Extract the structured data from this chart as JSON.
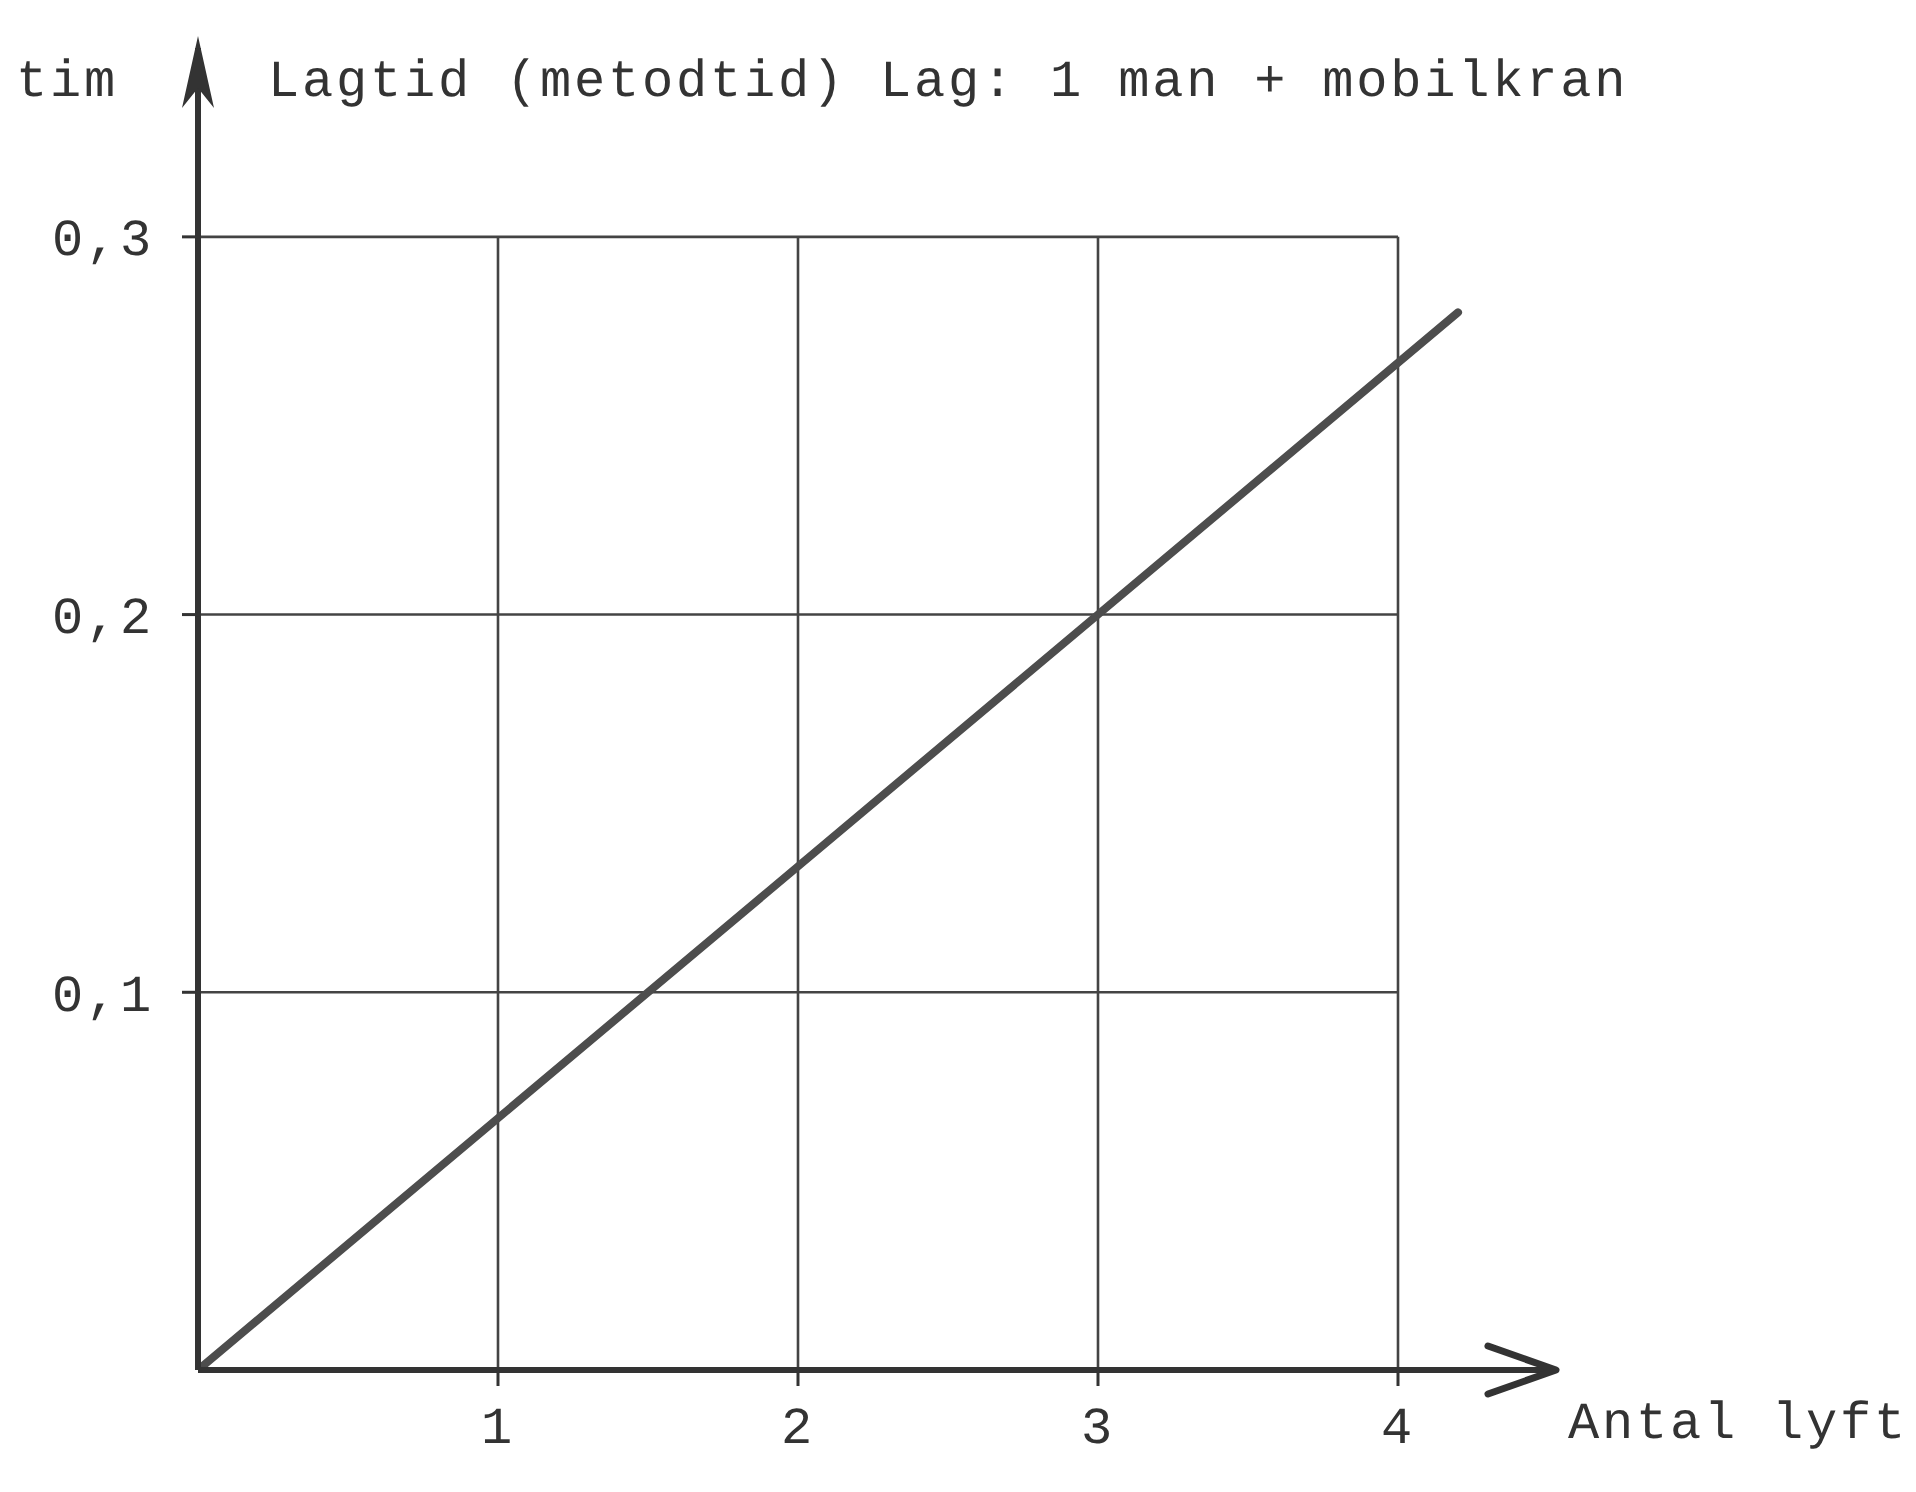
{
  "chart_data": {
    "type": "line",
    "title": "Lagtid (metodtid) Lag: 1 man + mobilkran",
    "xlabel": "Antal lyft",
    "ylabel": "tim",
    "x": [
      0,
      4.2
    ],
    "values": [
      0,
      0.28
    ],
    "color": "#4d4d4d",
    "xlim": [
      0,
      4.5
    ],
    "ylim": [
      0,
      0.35
    ],
    "xticks": [
      1,
      2,
      3,
      4
    ],
    "yticks": [
      {
        "value": 0.1,
        "label": "0,1"
      },
      {
        "value": 0.2,
        "label": "0,2"
      },
      {
        "value": 0.3,
        "label": "0,3"
      }
    ],
    "grid": true,
    "marker": "none"
  }
}
